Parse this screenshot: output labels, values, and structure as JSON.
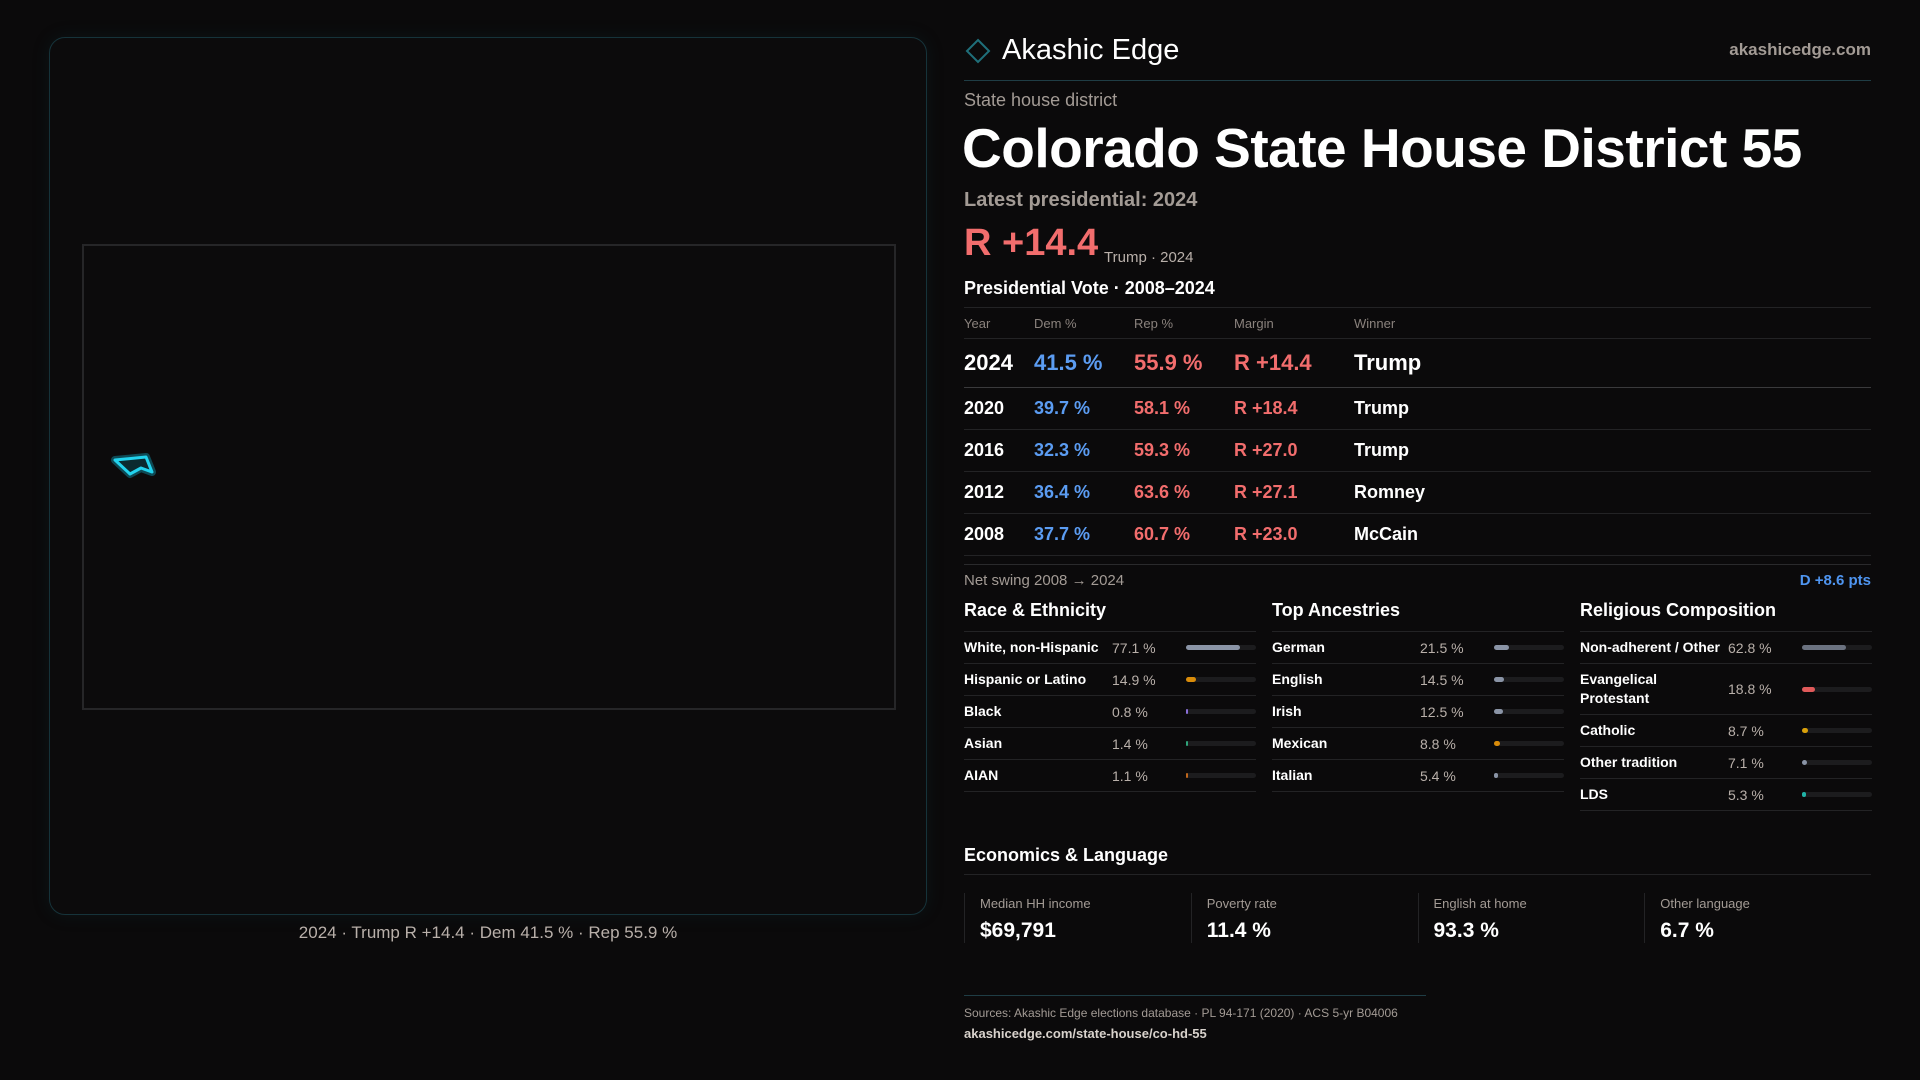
{
  "brand": {
    "name": "Akashic Edge",
    "site": "akashicedge.com",
    "accent": "#1f6f7a"
  },
  "header": {
    "subtitle": "State house district",
    "title": "Colorado State House District 55",
    "latest": "Latest presidential: 2024",
    "margin": "R +14.4",
    "margin_sub": "Trump · 2024"
  },
  "map": {
    "caption": "2024 · Trump R +14.4 · Dem 41.5 % · Rep 55.9 %",
    "highlight_color": "#22d3ee"
  },
  "pres": {
    "title": "Presidential Vote · 2008–2024",
    "headers": [
      "Year",
      "Dem %",
      "Rep %",
      "Margin",
      "Winner"
    ],
    "rows": [
      [
        "2024",
        "41.5 %",
        "55.9 %",
        "R +14.4",
        "Trump"
      ],
      [
        "2020",
        "39.7 %",
        "58.1 %",
        "R +18.4",
        "Trump"
      ],
      [
        "2016",
        "32.3 %",
        "59.3 %",
        "R +27.0",
        "Trump"
      ],
      [
        "2012",
        "36.4 %",
        "63.6 %",
        "R +27.1",
        "Romney"
      ],
      [
        "2008",
        "37.7 %",
        "60.7 %",
        "R +23.0",
        "McCain"
      ]
    ],
    "dem_color": "#5b9cf2",
    "rep_color": "#f26d6d"
  },
  "swing": {
    "label": "Net swing 2008 → 2024",
    "value": "D +8.6 pts"
  },
  "sections": [
    {
      "title": "Race & Ethnicity",
      "items": [
        {
          "label": "White, non-Hispanic",
          "value": "77.1 %",
          "pct": 77.1,
          "color": "#8a94a6"
        },
        {
          "label": "Hispanic or Latino",
          "value": "14.9 %",
          "pct": 14.9,
          "color": "#d98c0a"
        },
        {
          "label": "Black",
          "value": "0.8 %",
          "pct": 0.8,
          "color": "#8a6fd8"
        },
        {
          "label": "Asian",
          "value": "1.4 %",
          "pct": 1.4,
          "color": "#2fa37a"
        },
        {
          "label": "AIAN",
          "value": "1.1 %",
          "pct": 1.1,
          "color": "#c0671c"
        }
      ]
    },
    {
      "title": "Top Ancestries",
      "items": [
        {
          "label": "German",
          "value": "21.5 %",
          "pct": 21.5,
          "color": "#8a94a6"
        },
        {
          "label": "English",
          "value": "14.5 %",
          "pct": 14.5,
          "color": "#8a94a6"
        },
        {
          "label": "Irish",
          "value": "12.5 %",
          "pct": 12.5,
          "color": "#8a94a6"
        },
        {
          "label": "Mexican",
          "value": "8.8 %",
          "pct": 8.8,
          "color": "#d98c0a"
        },
        {
          "label": "Italian",
          "value": "5.4 %",
          "pct": 5.4,
          "color": "#8a94a6"
        }
      ]
    },
    {
      "title": "Religious Composition",
      "items": [
        {
          "label": "Non-adherent / Other",
          "value": "62.8 %",
          "pct": 62.8,
          "color": "#6b7280"
        },
        {
          "label": "Evangelical Protestant",
          "value": "18.8 %",
          "pct": 18.8,
          "color": "#e05a5a"
        },
        {
          "label": "Catholic",
          "value": "8.7 %",
          "pct": 8.7,
          "color": "#d9a00a"
        },
        {
          "label": "Other tradition",
          "value": "7.1 %",
          "pct": 7.1,
          "color": "#8a94a6"
        },
        {
          "label": "LDS",
          "value": "5.3 %",
          "pct": 5.3,
          "color": "#20b2a6"
        }
      ]
    }
  ],
  "econ": {
    "title": "Economics & Language",
    "cards": [
      {
        "label": "Median HH income",
        "value": "$69,791"
      },
      {
        "label": "Poverty rate",
        "value": "11.4 %"
      },
      {
        "label": "English at home",
        "value": "93.3 %"
      },
      {
        "label": "Other language",
        "value": "6.7 %"
      }
    ]
  },
  "footer": {
    "sources": "Sources: Akashic Edge elections database · PL 94-171 (2020) · ACS 5-yr B04006",
    "url": "akashicedge.com/state-house/co-hd-55"
  }
}
